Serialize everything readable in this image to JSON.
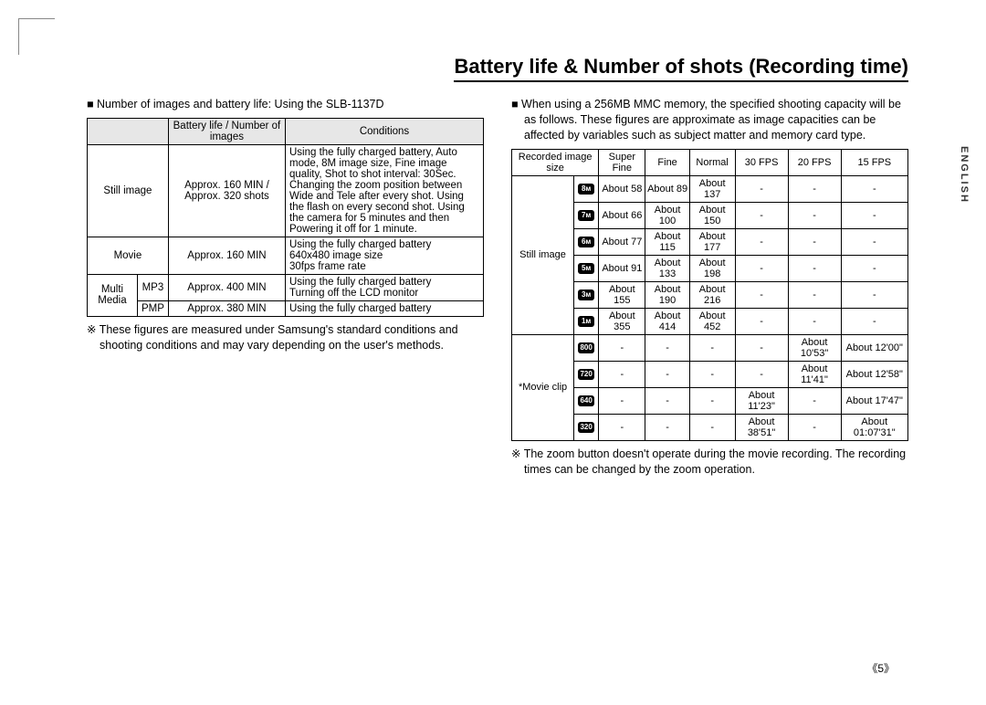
{
  "title": "Battery life & Number of shots (Recording time)",
  "sideTab": "ENGLISH",
  "pageNumber": "《5》",
  "left": {
    "lead": "■ Number of images and battery life: Using the SLB-1137D",
    "headers": {
      "col2": "Battery life / Number of images",
      "col3": "Conditions"
    },
    "rows": {
      "still": {
        "label": "Still image",
        "life": "Approx. 160 MIN / Approx. 320 shots",
        "cond": "Using the fully charged battery, Auto mode, 8M image size, Fine image quality, Shot to shot interval: 30Sec. Changing the zoom position between Wide and Tele after every shot. Using the flash on every second shot. Using the camera for 5 minutes and then Powering it off for 1 minute."
      },
      "movie": {
        "label": "Movie",
        "life": "Approx. 160 MIN",
        "cond": "Using the fully charged battery\n640x480 image size\n30fps frame rate"
      },
      "multi": {
        "label": "Multi Media"
      },
      "mp3": {
        "label": "MP3",
        "life": "Approx. 400 MIN",
        "cond": "Using the fully charged battery\nTurning off the LCD monitor"
      },
      "pmp": {
        "label": "PMP",
        "life": "Approx. 380 MIN",
        "cond": "Using the fully charged battery"
      }
    },
    "note": "※ These figures are measured under Samsung's standard conditions and shooting conditions and may vary depending on the user's methods."
  },
  "right": {
    "lead": "■ When using a 256MB MMC memory, the specified shooting capacity will be as follows. These figures are approximate as image capacities can be affected by variables such as subject matter and memory card type.",
    "headers": {
      "size": "Recorded image size",
      "sf": "Super Fine",
      "f": "Fine",
      "n": "Normal",
      "fps30": "30 FPS",
      "fps20": "20 FPS",
      "fps15": "15 FPS"
    },
    "stillLabel": "Still image",
    "movieLabel": "*Movie clip",
    "icons": [
      "8м",
      "7м",
      "6м",
      "5м",
      "3м",
      "1м",
      "800",
      "720",
      "640",
      "320"
    ],
    "stillRows": [
      {
        "sf": "About 58",
        "f": "About 89",
        "n": "About 137",
        "fps30": "-",
        "fps20": "-",
        "fps15": "-"
      },
      {
        "sf": "About 66",
        "f": "About 100",
        "n": "About 150",
        "fps30": "-",
        "fps20": "-",
        "fps15": "-"
      },
      {
        "sf": "About 77",
        "f": "About 115",
        "n": "About 177",
        "fps30": "-",
        "fps20": "-",
        "fps15": "-"
      },
      {
        "sf": "About 91",
        "f": "About 133",
        "n": "About 198",
        "fps30": "-",
        "fps20": "-",
        "fps15": "-"
      },
      {
        "sf": "About 155",
        "f": "About 190",
        "n": "About 216",
        "fps30": "-",
        "fps20": "-",
        "fps15": "-"
      },
      {
        "sf": "About 355",
        "f": "About 414",
        "n": "About 452",
        "fps30": "-",
        "fps20": "-",
        "fps15": "-"
      }
    ],
    "movieRows": [
      {
        "sf": "-",
        "f": "-",
        "n": "-",
        "fps30": "-",
        "fps20": "About 10'53\"",
        "fps15": "About 12'00\""
      },
      {
        "sf": "-",
        "f": "-",
        "n": "-",
        "fps30": "-",
        "fps20": "About 11'41\"",
        "fps15": "About 12'58\""
      },
      {
        "sf": "-",
        "f": "-",
        "n": "-",
        "fps30": "About 11'23\"",
        "fps20": "-",
        "fps15": "About 17'47\""
      },
      {
        "sf": "-",
        "f": "-",
        "n": "-",
        "fps30": "About 38'51\"",
        "fps20": "-",
        "fps15": "About 01:07'31\""
      }
    ],
    "note": "※ The zoom button doesn't operate during the movie recording. The recording times can be changed by the zoom operation."
  }
}
